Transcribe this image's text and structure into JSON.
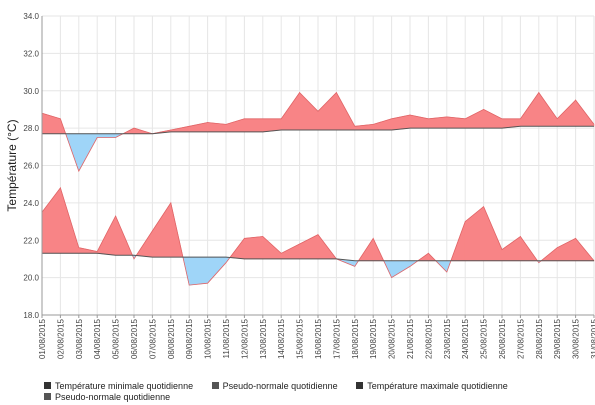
{
  "chart_data": {
    "type": "area",
    "ylabel": "Température (°C)",
    "ylim": [
      18.0,
      34.0
    ],
    "yticks": [
      "18.0",
      "20.0",
      "22.0",
      "24.0",
      "26.0",
      "28.0",
      "30.0",
      "32.0",
      "34.0"
    ],
    "grid": true,
    "legend_position": "bottom",
    "colors": {
      "above": "#f88486",
      "below": "#9fd5f8",
      "line": "#555555",
      "grid": "#e6e6e6"
    },
    "x": [
      "01/08/2015",
      "02/08/2015",
      "03/08/2015",
      "04/08/2015",
      "05/08/2015",
      "06/08/2015",
      "07/08/2015",
      "08/08/2015",
      "09/08/2015",
      "10/08/2015",
      "11/08/2015",
      "12/08/2015",
      "13/08/2015",
      "14/08/2015",
      "15/08/2015",
      "16/08/2015",
      "17/08/2015",
      "18/08/2015",
      "19/08/2015",
      "20/08/2015",
      "21/08/2015",
      "22/08/2015",
      "23/08/2015",
      "24/08/2015",
      "25/08/2015",
      "26/08/2015",
      "27/08/2015",
      "28/08/2015",
      "29/08/2015",
      "30/08/2015",
      "31/08/2015"
    ],
    "series": [
      {
        "name": "Température maximale quotidienne",
        "role": "max",
        "values": [
          28.8,
          28.5,
          25.7,
          27.5,
          27.5,
          28.0,
          27.7,
          27.9,
          28.1,
          28.3,
          28.2,
          28.5,
          28.5,
          28.5,
          29.9,
          28.9,
          29.9,
          28.1,
          28.2,
          28.5,
          28.7,
          28.5,
          28.6,
          28.5,
          29.0,
          28.5,
          28.5,
          29.9,
          28.5,
          29.5,
          28.2
        ]
      },
      {
        "name": "Pseudo-normale quotidienne",
        "role": "max_normal",
        "values": [
          27.7,
          27.7,
          27.7,
          27.7,
          27.7,
          27.7,
          27.7,
          27.8,
          27.8,
          27.8,
          27.8,
          27.8,
          27.8,
          27.9,
          27.9,
          27.9,
          27.9,
          27.9,
          27.9,
          27.9,
          28.0,
          28.0,
          28.0,
          28.0,
          28.0,
          28.0,
          28.1,
          28.1,
          28.1,
          28.1,
          28.1
        ]
      },
      {
        "name": "Température minimale quotidienne",
        "role": "min",
        "values": [
          23.5,
          24.8,
          21.6,
          21.4,
          23.3,
          21.0,
          22.5,
          24.0,
          19.6,
          19.7,
          20.8,
          22.1,
          22.2,
          21.3,
          21.8,
          22.3,
          21.0,
          20.6,
          22.1,
          20.0,
          20.6,
          21.3,
          20.3,
          23.0,
          23.8,
          21.5,
          22.2,
          20.8,
          21.6,
          22.1,
          20.9
        ]
      },
      {
        "name": "Pseudo-normale quotidienne",
        "role": "min_normal",
        "values": [
          21.3,
          21.3,
          21.3,
          21.3,
          21.2,
          21.2,
          21.1,
          21.1,
          21.1,
          21.1,
          21.1,
          21.0,
          21.0,
          21.0,
          21.0,
          21.0,
          21.0,
          20.9,
          20.9,
          20.9,
          20.9,
          20.9,
          20.9,
          20.9,
          20.9,
          20.9,
          20.9,
          20.9,
          20.9,
          20.9,
          20.9
        ]
      }
    ],
    "legend": [
      {
        "label": "Température minimale quotidienne",
        "color": "#333333"
      },
      {
        "label": "Pseudo-normale quotidienne",
        "color": "#555555"
      },
      {
        "label": "Température maximale quotidienne",
        "color": "#333333"
      },
      {
        "label": "Pseudo-normale quotidienne",
        "color": "#555555"
      }
    ]
  }
}
